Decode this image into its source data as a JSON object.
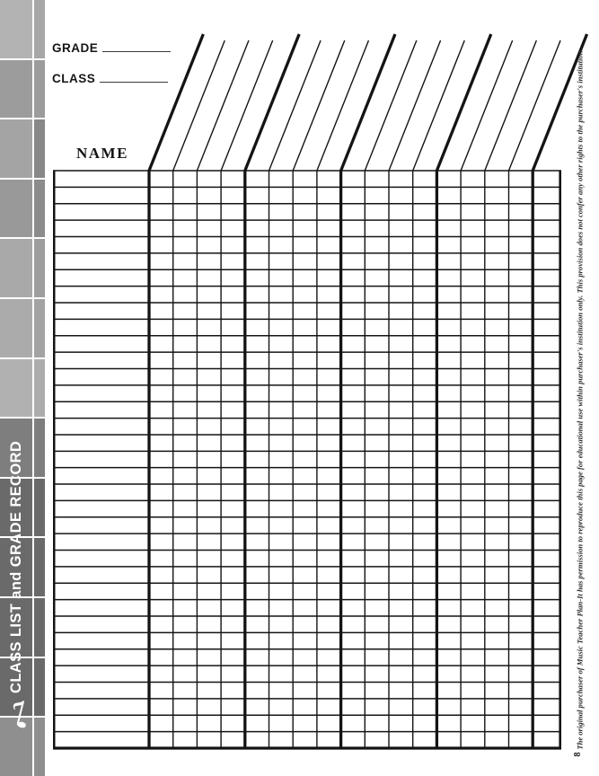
{
  "page": {
    "number": "8",
    "ink_color": "#141414",
    "background_color": "#ffffff"
  },
  "header": {
    "grade_label": "GRADE",
    "class_label": "CLASS",
    "grade_value": "",
    "class_value": ""
  },
  "sidebar": {
    "title": "CLASS LIST and GRADE RECORD",
    "note_icon": "eighth-note",
    "text_color": "#ffffff",
    "dark_color": "#6a6a6a",
    "col1_tiles": [
      "#b3b3b3",
      "#9c9c9c",
      "#a4a4a4",
      "#999999",
      "#a9a9a9",
      "#ababab",
      "#b1b1b1",
      "#7e7e7e",
      "#6a6a6a",
      "#6a6a6a",
      "#6a6a6a",
      "#6a6a6a",
      "#8f8f8f"
    ],
    "col2_tiles": [
      "#a7a7a7",
      "#9c9c9c",
      "#888888",
      "#8c8c8c",
      "#9e9e9e",
      "#a3a3a3",
      "#acacac",
      "#7e7e7e",
      "#6a6a6a",
      "#6a6a6a",
      "#6a6a6a",
      "#6a6a6a",
      "#8f8f8f"
    ]
  },
  "table": {
    "name_column_label": "NAME",
    "rows": 35,
    "score_columns": 16,
    "trailing_columns": 1,
    "group_size": 4
  },
  "footer_note": "The original purchaser of Music Teacher Plan-It has permission to reproduce this page for educational use within purchaser's institution only. This provision does not confer any other rights to the purchaser's institution."
}
